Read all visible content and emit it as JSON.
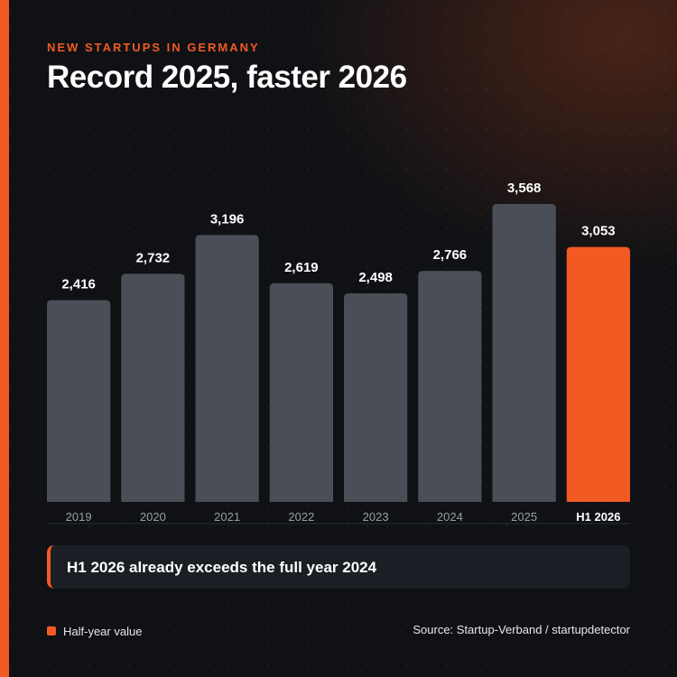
{
  "header": {
    "kicker": "NEW STARTUPS IN GERMANY",
    "title": "Record 2025, faster 2026"
  },
  "callout": {
    "text": "H1 2026 already exceeds the full year 2024"
  },
  "legend": {
    "label": "Half-year value"
  },
  "footer": {
    "source": "Source: Startup-Verband / startupdetector"
  },
  "colors": {
    "accent": "#f15a22",
    "bar": "#4a4f57",
    "background": "#0f1115"
  },
  "chart_data": {
    "type": "bar",
    "title": "Record 2025, faster 2026",
    "xlabel": "",
    "ylabel": "",
    "categories": [
      "2019",
      "2020",
      "2021",
      "2022",
      "2023",
      "2024",
      "2025",
      "H1 2026"
    ],
    "values": [
      2416,
      2732,
      3196,
      2619,
      2498,
      2766,
      3568,
      3053
    ],
    "value_labels": [
      "2,416",
      "2,732",
      "3,196",
      "2,619",
      "2,498",
      "2,766",
      "3,568",
      "3,053"
    ],
    "highlight": [
      false,
      false,
      false,
      false,
      false,
      false,
      false,
      true
    ],
    "ylim": [
      0,
      3568
    ],
    "grid": false,
    "legend": "bottom-left"
  }
}
